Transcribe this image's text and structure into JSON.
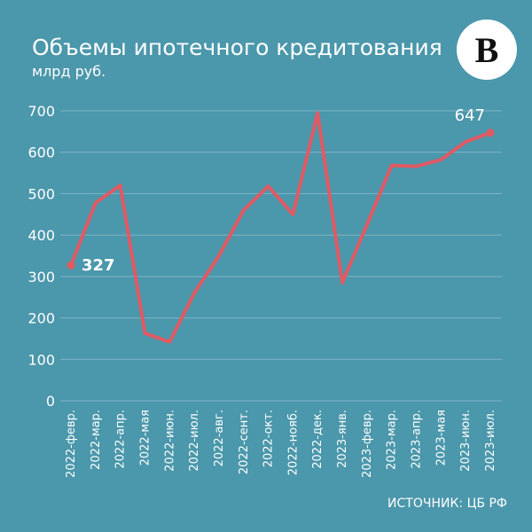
{
  "chart_data": {
    "type": "line",
    "title": "Объемы ипотечного кредитования",
    "subtitle": "млрд руб.",
    "logo": "В",
    "source": "ИСТОЧНИК: ЦБ РФ",
    "categories": [
      "2022-февр.",
      "2022-мар.",
      "2022-апр.",
      "2022-мая",
      "2022-июн.",
      "2022-июл.",
      "2022-авг.",
      "2022-сент.",
      "2022-окт.",
      "2022-нояб.",
      "2022-дек.",
      "2023-янв.",
      "2023-февр.",
      "2023-мар.",
      "2023-апр.",
      "2023-мая",
      "2023-июн.",
      "2023-июл."
    ],
    "series": [
      {
        "name": "Объемы ипотечного кредитования",
        "color": "#e05a64",
        "values": [
          327,
          478,
          520,
          163,
          142,
          260,
          350,
          460,
          518,
          450,
          695,
          285,
          425,
          568,
          566,
          582,
          625,
          647
        ]
      }
    ],
    "ylim": [
      0,
      700
    ],
    "yticks": [
      0,
      100,
      200,
      300,
      400,
      500,
      600,
      700
    ],
    "grid": true
  }
}
